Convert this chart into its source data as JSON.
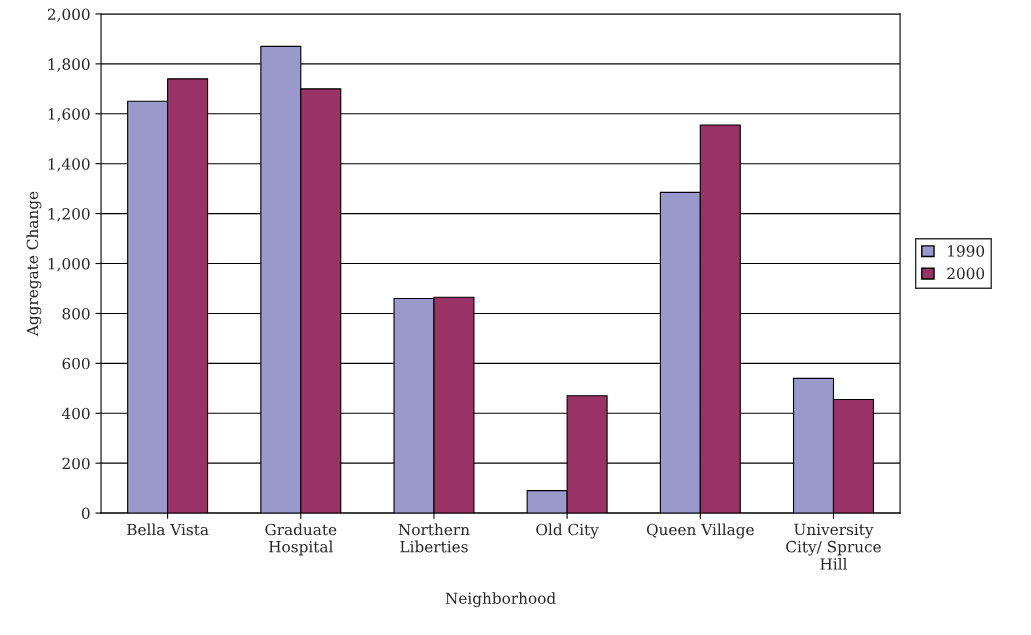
{
  "chart_data": {
    "type": "bar",
    "xlabel": "Neighborhood",
    "ylabel": "Aggregate Change",
    "categories": [
      "Bella Vista",
      "Graduate Hospital",
      "Northern Liberties",
      "Old City",
      "Queen Village",
      "University City/ Spruce Hill"
    ],
    "series": [
      {
        "name": "1990",
        "color": "#9999cc",
        "values": [
          1650,
          1870,
          860,
          90,
          1285,
          540
        ]
      },
      {
        "name": "2000",
        "color": "#993366",
        "values": [
          1740,
          1700,
          865,
          470,
          1555,
          455
        ]
      }
    ],
    "ylim": [
      0,
      2000
    ],
    "yticks": [
      {
        "value": 0,
        "label": "0"
      },
      {
        "value": 200,
        "label": "200"
      },
      {
        "value": 400,
        "label": "400"
      },
      {
        "value": 600,
        "label": "600"
      },
      {
        "value": 800,
        "label": "800"
      },
      {
        "value": 1000,
        "label": "1,000"
      },
      {
        "value": 1200,
        "label": "1,200"
      },
      {
        "value": 1400,
        "label": "1,400"
      },
      {
        "value": 1600,
        "label": "1,600"
      },
      {
        "value": 1800,
        "label": "1,800"
      },
      {
        "value": 2000,
        "label": "2,000"
      }
    ],
    "grid": "y",
    "legend": "right"
  }
}
